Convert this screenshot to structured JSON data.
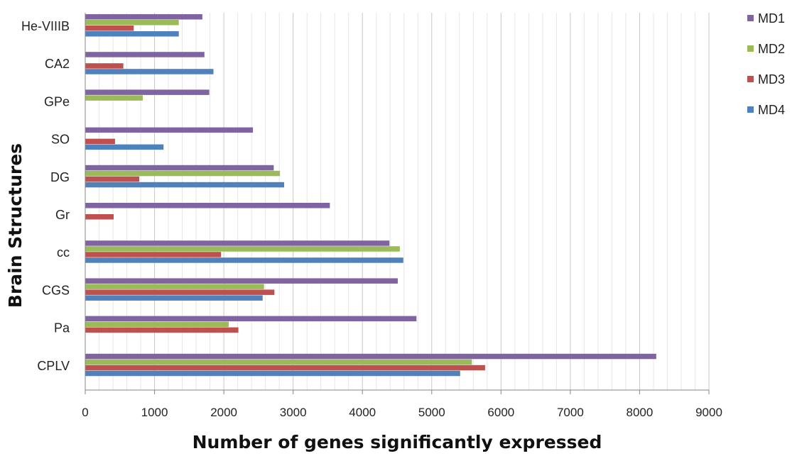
{
  "chart_data": {
    "type": "bar",
    "orientation": "horizontal",
    "xlabel": "Number of genes significantly expressed",
    "ylabel": "Brain Structures",
    "xlim": [
      0,
      9000
    ],
    "xticks": [
      "0",
      "1000",
      "2000",
      "3000",
      "4000",
      "5000",
      "6000",
      "7000",
      "8000",
      "9000"
    ],
    "grid": "vertical",
    "legend_position": "right",
    "categories": [
      "He-VIIIB",
      "CA2",
      "GPe",
      "SO",
      "DG",
      "Gr",
      "cc",
      "CGS",
      "Pa",
      "CPLV"
    ],
    "series": [
      {
        "name": "MD1",
        "color": "#8064A2",
        "values": [
          1690,
          1720,
          1790,
          2420,
          2720,
          3530,
          4390,
          4510,
          4780,
          8240
        ]
      },
      {
        "name": "MD2",
        "color": "#9BBB59",
        "values": [
          1350,
          null,
          830,
          null,
          2810,
          null,
          4540,
          2580,
          2070,
          5580
        ]
      },
      {
        "name": "MD3",
        "color": "#C0504D",
        "values": [
          700,
          550,
          null,
          430,
          780,
          410,
          1960,
          2730,
          2210,
          5770
        ]
      },
      {
        "name": "MD4",
        "color": "#4F81BD",
        "values": [
          1350,
          1850,
          null,
          1130,
          2870,
          null,
          4590,
          2560,
          null,
          5410
        ]
      }
    ]
  }
}
